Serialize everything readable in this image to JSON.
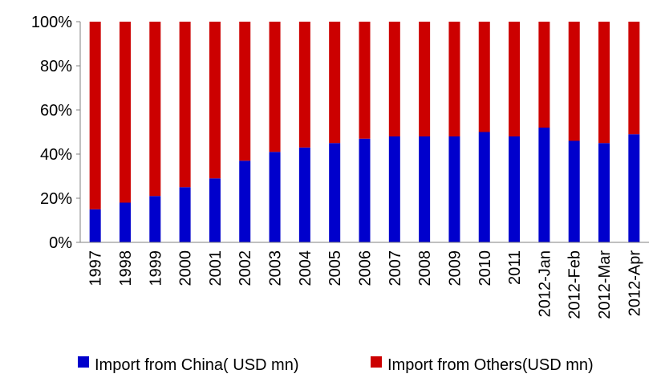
{
  "chart_data": {
    "type": "bar",
    "stacked": true,
    "percent": true,
    "categories": [
      "1997",
      "1998",
      "1999",
      "2000",
      "2001",
      "2002",
      "2003",
      "2004",
      "2005",
      "2006",
      "2007",
      "2008",
      "2009",
      "2010",
      "2011",
      "2012-Jan",
      "2012-Feb",
      "2012-Mar",
      "2012-Apr"
    ],
    "series": [
      {
        "name": "Import from China( USD mn)",
        "color": "#0000CC",
        "values": [
          15,
          18,
          21,
          25,
          29,
          37,
          41,
          43,
          45,
          47,
          48,
          48,
          48,
          50,
          48,
          52,
          46,
          45,
          49
        ]
      },
      {
        "name": "Import from Others(USD mn)",
        "color": "#CC0000",
        "values": [
          85,
          82,
          79,
          75,
          71,
          63,
          59,
          57,
          55,
          53,
          52,
          52,
          52,
          50,
          52,
          48,
          54,
          55,
          51
        ]
      }
    ],
    "yticks": [
      "0%",
      "20%",
      "40%",
      "60%",
      "80%",
      "100%"
    ],
    "ylim": [
      0,
      100
    ],
    "grid": false,
    "legend_position": "bottom"
  }
}
